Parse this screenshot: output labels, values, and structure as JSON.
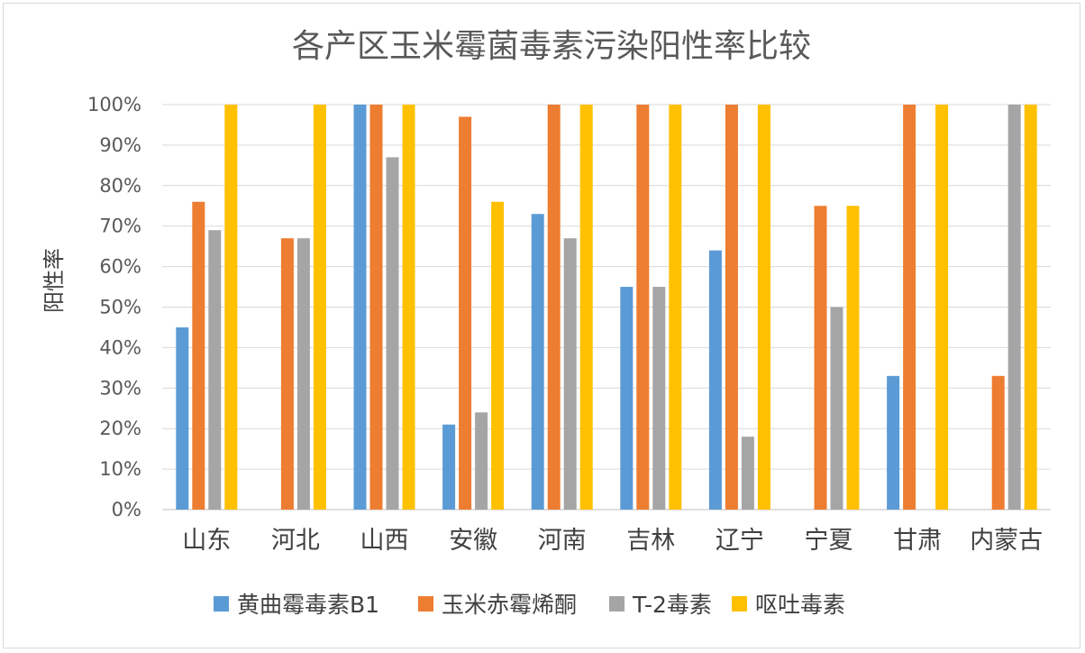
{
  "chart_data": {
    "type": "bar",
    "title": "各产区玉米霉菌毒素污染阳性率比较",
    "xlabel": "",
    "ylabel": "阳性率",
    "ylim": [
      0,
      100
    ],
    "y_ticks": [
      "0%",
      "10%",
      "20%",
      "30%",
      "40%",
      "50%",
      "60%",
      "70%",
      "80%",
      "90%",
      "100%"
    ],
    "categories": [
      "山东",
      "河北",
      "山西",
      "安徽",
      "河南",
      "吉林",
      "辽宁",
      "宁夏",
      "甘肃",
      "内蒙古"
    ],
    "grid": true,
    "legend_position": "bottom",
    "series": [
      {
        "name": "黄曲霉毒素B1",
        "color": "#5B9BD5",
        "values": [
          45,
          0,
          100,
          21,
          73,
          55,
          64,
          0,
          33,
          0
        ]
      },
      {
        "name": "玉米赤霉烯酮",
        "color": "#ED7D31",
        "values": [
          76,
          67,
          100,
          97,
          100,
          100,
          100,
          75,
          100,
          33
        ]
      },
      {
        "name": "T-2毒素",
        "color": "#A5A5A5",
        "values": [
          69,
          67,
          87,
          24,
          67,
          55,
          18,
          50,
          0,
          100
        ]
      },
      {
        "name": "呕吐毒素",
        "color": "#FFC000",
        "values": [
          100,
          100,
          100,
          76,
          100,
          100,
          100,
          75,
          100,
          100
        ]
      }
    ]
  }
}
